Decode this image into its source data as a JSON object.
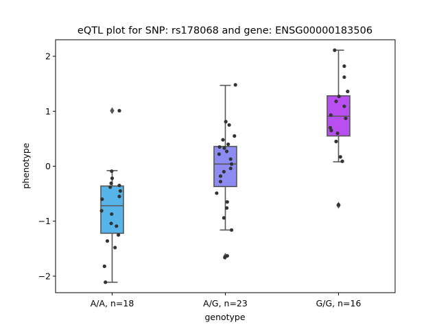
{
  "chart_data": {
    "type": "box",
    "title": "eQTL plot for SNP: rs178068 and gene: ENSG00000183506",
    "xlabel": "genotype",
    "ylabel": "phenotype",
    "ylim": [
      -2.3,
      2.3
    ],
    "yticks": [
      -2,
      -1,
      0,
      1,
      2
    ],
    "ytick_labels": [
      "−2",
      "−1",
      "0",
      "1",
      "2"
    ],
    "grid": false,
    "categories": [
      "A/A, n=18",
      "A/G, n=23",
      "G/G, n=16"
    ],
    "colors": [
      "#56b4e9",
      "#8c8cf2",
      "#b94ff0"
    ],
    "edge_color": "#555555",
    "point_color": "#333333",
    "boxes": [
      {
        "q1": -1.22,
        "median": -0.72,
        "q3": -0.36,
        "whisker_low": -2.11,
        "whisker_high": -0.08,
        "outliers": [
          1.01
        ]
      },
      {
        "q1": -0.37,
        "median": 0.04,
        "q3": 0.36,
        "whisker_low": -1.16,
        "whisker_high": 1.47,
        "outliers": [
          -1.64
        ]
      },
      {
        "q1": 0.55,
        "median": 0.91,
        "q3": 1.28,
        "whisker_low": 0.08,
        "whisker_high": 2.11,
        "outliers": [
          -0.71
        ]
      }
    ],
    "points": [
      [
        {
          "x": 0.15,
          "y": 1.01
        },
        {
          "x": -0.01,
          "y": -0.09
        },
        {
          "x": 0.0,
          "y": -0.22
        },
        {
          "x": -0.02,
          "y": -0.31
        },
        {
          "x": 0.15,
          "y": -0.35
        },
        {
          "x": 0.17,
          "y": -0.45
        },
        {
          "x": -0.04,
          "y": -0.38
        },
        {
          "x": 0.15,
          "y": -0.55
        },
        {
          "x": -0.21,
          "y": -0.6
        },
        {
          "x": -0.22,
          "y": -0.81
        },
        {
          "x": -0.01,
          "y": -0.87
        },
        {
          "x": -0.02,
          "y": -1.04
        },
        {
          "x": 0.09,
          "y": -1.09
        },
        {
          "x": 0.13,
          "y": -1.25
        },
        {
          "x": -0.1,
          "y": -1.36
        },
        {
          "x": 0.06,
          "y": -1.48
        },
        {
          "x": -0.16,
          "y": -1.82
        },
        {
          "x": -0.14,
          "y": -2.11
        }
      ],
      [
        {
          "x": 0.21,
          "y": 1.48
        },
        {
          "x": 0.01,
          "y": 0.81
        },
        {
          "x": 0.08,
          "y": 0.75
        },
        {
          "x": 0.19,
          "y": 0.55
        },
        {
          "x": -0.05,
          "y": 0.48
        },
        {
          "x": 0.06,
          "y": 0.4
        },
        {
          "x": -0.12,
          "y": 0.35
        },
        {
          "x": -0.02,
          "y": 0.33
        },
        {
          "x": 0.03,
          "y": 0.27
        },
        {
          "x": -0.13,
          "y": 0.22
        },
        {
          "x": 0.11,
          "y": 0.13
        },
        {
          "x": 0.13,
          "y": 0.04
        },
        {
          "x": 0.11,
          "y": -0.04
        },
        {
          "x": -0.03,
          "y": -0.1
        },
        {
          "x": -0.1,
          "y": -0.18
        },
        {
          "x": -0.1,
          "y": -0.28
        },
        {
          "x": -0.18,
          "y": -0.49
        },
        {
          "x": 0.04,
          "y": -0.65
        },
        {
          "x": 0.03,
          "y": -0.76
        },
        {
          "x": -0.03,
          "y": -0.94
        },
        {
          "x": 0.13,
          "y": -1.16
        },
        {
          "x": 0.04,
          "y": -1.63
        },
        {
          "x": -0.01,
          "y": -1.66
        }
      ],
      [
        {
          "x": -0.08,
          "y": 2.11
        },
        {
          "x": 0.12,
          "y": 1.82
        },
        {
          "x": 0.12,
          "y": 1.62
        },
        {
          "x": 0.19,
          "y": 1.36
        },
        {
          "x": 0.01,
          "y": 1.27
        },
        {
          "x": -0.05,
          "y": 1.18
        },
        {
          "x": 0.12,
          "y": 1.09
        },
        {
          "x": -0.16,
          "y": 0.93
        },
        {
          "x": 0.15,
          "y": 0.87
        },
        {
          "x": -0.17,
          "y": 0.7
        },
        {
          "x": -0.15,
          "y": 0.65
        },
        {
          "x": -0.02,
          "y": 0.6
        },
        {
          "x": -0.05,
          "y": 0.45
        },
        {
          "x": 0.04,
          "y": 0.17
        },
        {
          "x": 0.08,
          "y": 0.09
        },
        {
          "x": 0.0,
          "y": -0.7
        }
      ]
    ]
  }
}
